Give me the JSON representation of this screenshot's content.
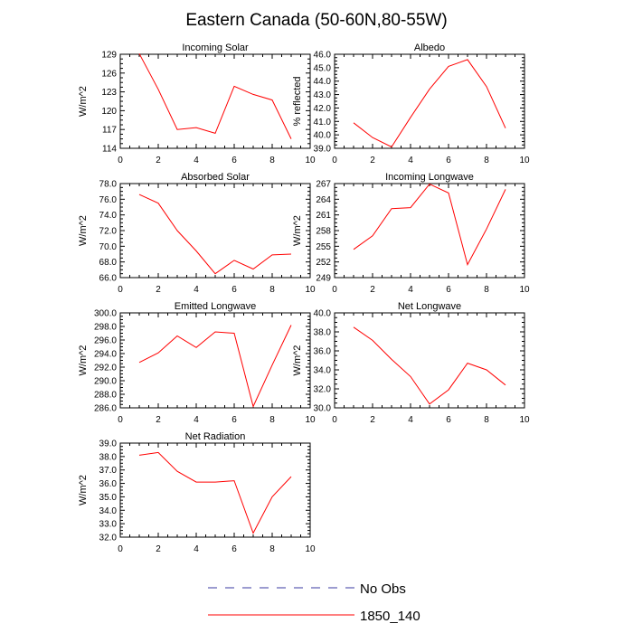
{
  "title": "Eastern Canada (50-60N,80-55W)",
  "legend": {
    "placement": "bottom-center",
    "entries": [
      {
        "label": "No Obs",
        "color": "#3a3aa0",
        "dash": true
      },
      {
        "label": "1850_140",
        "color": "#ff0000",
        "dash": false
      }
    ]
  },
  "chart_data": [
    {
      "type": "line",
      "title": "Incoming Solar",
      "ylabel": "W/m^2",
      "xlim": [
        0,
        10
      ],
      "ylim": [
        114,
        129
      ],
      "xticks": [
        0,
        2,
        4,
        6,
        8,
        10
      ],
      "xtick_labels": [
        "0",
        "2",
        "4",
        "6",
        "8",
        "10"
      ],
      "yticks": [
        114,
        117,
        120,
        123,
        126,
        129
      ],
      "ytick_labels": [
        "114",
        "117",
        "120",
        "123",
        "126",
        "129"
      ],
      "series": [
        {
          "color": "#ff0000",
          "x": [
            1,
            2,
            3,
            4,
            5,
            6,
            7,
            8,
            9
          ],
          "y": [
            129.1,
            123.4,
            117.0,
            117.3,
            116.4,
            123.9,
            122.6,
            121.7,
            115.5
          ]
        }
      ]
    },
    {
      "type": "line",
      "title": "Albedo",
      "ylabel": "% reflected",
      "xlim": [
        0,
        10
      ],
      "ylim": [
        39,
        46
      ],
      "xticks": [
        0,
        2,
        4,
        6,
        8,
        10
      ],
      "xtick_labels": [
        "0",
        "2",
        "4",
        "6",
        "8",
        "10"
      ],
      "yticks": [
        39,
        40,
        41,
        42,
        43,
        44,
        45,
        46
      ],
      "ytick_labels": [
        "39.0",
        "40.0",
        "41.0",
        "42.0",
        "43.0",
        "44.0",
        "45.0",
        "46.0"
      ],
      "series": [
        {
          "color": "#ff0000",
          "x": [
            1,
            2,
            3,
            4,
            5,
            6,
            7,
            8,
            9
          ],
          "y": [
            40.9,
            39.8,
            39.1,
            41.3,
            43.4,
            45.1,
            45.6,
            43.6,
            40.5
          ]
        }
      ]
    },
    {
      "type": "line",
      "title": "Absorbed Solar",
      "ylabel": "W/m^2",
      "xlim": [
        0,
        10
      ],
      "ylim": [
        66,
        78
      ],
      "xticks": [
        0,
        2,
        4,
        6,
        8,
        10
      ],
      "xtick_labels": [
        "0",
        "2",
        "4",
        "6",
        "8",
        "10"
      ],
      "yticks": [
        66,
        68,
        70,
        72,
        74,
        76,
        78
      ],
      "ytick_labels": [
        "66.0",
        "68.0",
        "70.0",
        "72.0",
        "74.0",
        "76.0",
        "78.0"
      ],
      "series": [
        {
          "color": "#ff0000",
          "x": [
            1,
            2,
            3,
            4,
            5,
            6,
            7,
            8,
            9
          ],
          "y": [
            76.6,
            75.5,
            72.0,
            69.4,
            66.5,
            68.2,
            67.1,
            68.9,
            69.0
          ]
        }
      ]
    },
    {
      "type": "line",
      "title": "Incoming Longwave",
      "ylabel": "W/m^2",
      "xlim": [
        0,
        10
      ],
      "ylim": [
        249,
        267
      ],
      "xticks": [
        0,
        2,
        4,
        6,
        8,
        10
      ],
      "xtick_labels": [
        "0",
        "2",
        "4",
        "6",
        "8",
        "10"
      ],
      "yticks": [
        249,
        252,
        255,
        258,
        261,
        264,
        267
      ],
      "ytick_labels": [
        "249",
        "252",
        "255",
        "258",
        "261",
        "264",
        "267"
      ],
      "series": [
        {
          "color": "#ff0000",
          "x": [
            1,
            2,
            3,
            4,
            5,
            6,
            7,
            8,
            9
          ],
          "y": [
            254.4,
            257.0,
            262.2,
            262.4,
            266.9,
            265.2,
            251.5,
            258.3,
            265.9
          ]
        }
      ]
    },
    {
      "type": "line",
      "title": "Emitted Longwave",
      "ylabel": "W/m^2",
      "xlim": [
        0,
        10
      ],
      "ylim": [
        286,
        300
      ],
      "xticks": [
        0,
        2,
        4,
        6,
        8,
        10
      ],
      "xtick_labels": [
        "0",
        "2",
        "4",
        "6",
        "8",
        "10"
      ],
      "yticks": [
        286,
        288,
        290,
        292,
        294,
        296,
        298,
        300
      ],
      "ytick_labels": [
        "286.0",
        "288.0",
        "290.0",
        "292.0",
        "294.0",
        "296.0",
        "298.0",
        "300.0"
      ],
      "series": [
        {
          "color": "#ff0000",
          "x": [
            1,
            2,
            3,
            4,
            5,
            6,
            7,
            8,
            9
          ],
          "y": [
            292.7,
            294.1,
            296.6,
            294.9,
            297.2,
            297.0,
            286.2,
            292.3,
            298.2
          ]
        }
      ]
    },
    {
      "type": "line",
      "title": "Net Longwave",
      "ylabel": "W/m^2",
      "xlim": [
        0,
        10
      ],
      "ylim": [
        30,
        40
      ],
      "xticks": [
        0,
        2,
        4,
        6,
        8,
        10
      ],
      "xtick_labels": [
        "0",
        "2",
        "4",
        "6",
        "8",
        "10"
      ],
      "yticks": [
        30,
        32,
        34,
        36,
        38,
        40
      ],
      "ytick_labels": [
        "30.0",
        "32.0",
        "34.0",
        "36.0",
        "38.0",
        "40.0"
      ],
      "series": [
        {
          "color": "#ff0000",
          "x": [
            1,
            2,
            3,
            4,
            5,
            6,
            7,
            8,
            9
          ],
          "y": [
            38.5,
            37.1,
            35.1,
            33.3,
            30.4,
            31.9,
            34.7,
            34.0,
            32.4
          ]
        }
      ]
    },
    {
      "type": "line",
      "title": "Net Radiation",
      "ylabel": "W/m^2",
      "xlim": [
        0,
        10
      ],
      "ylim": [
        32,
        39
      ],
      "xticks": [
        0,
        2,
        4,
        6,
        8,
        10
      ],
      "xtick_labels": [
        "0",
        "2",
        "4",
        "6",
        "8",
        "10"
      ],
      "yticks": [
        32,
        33,
        34,
        35,
        36,
        37,
        38,
        39
      ],
      "ytick_labels": [
        "32.0",
        "33.0",
        "34.0",
        "35.0",
        "36.0",
        "37.0",
        "38.0",
        "39.0"
      ],
      "series": [
        {
          "color": "#ff0000",
          "x": [
            1,
            2,
            3,
            4,
            5,
            6,
            7,
            8,
            9
          ],
          "y": [
            38.1,
            38.3,
            36.9,
            36.1,
            36.1,
            36.2,
            32.3,
            35.0,
            36.5
          ]
        }
      ]
    }
  ]
}
